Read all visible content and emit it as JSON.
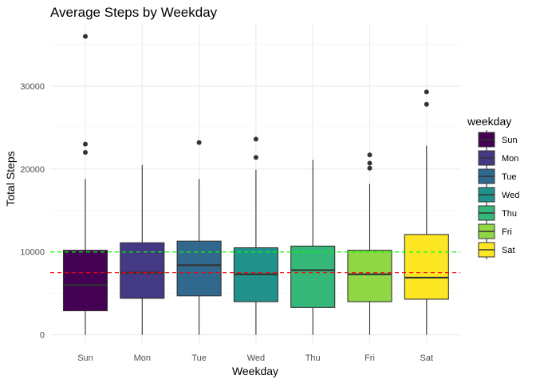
{
  "chart_data": {
    "type": "boxplot",
    "title": "Average Steps by Weekday",
    "xlabel": "Weekday",
    "ylabel": "Total Steps",
    "ylim": [
      -1000,
      37500
    ],
    "yticks": [
      0,
      10000,
      20000,
      30000
    ],
    "grid": true,
    "legend": {
      "title": "weekday",
      "position": "right"
    },
    "reference_lines": [
      {
        "value": 10000,
        "color": "#00ff00",
        "style": "dashed"
      },
      {
        "value": 7500,
        "color": "#ff0000",
        "style": "dashed"
      }
    ],
    "categories": [
      "Sun",
      "Mon",
      "Tue",
      "Wed",
      "Thu",
      "Fri",
      "Sat"
    ],
    "colors": [
      "#440154",
      "#443983",
      "#31688e",
      "#21918c",
      "#35b779",
      "#8fd744",
      "#fde725"
    ],
    "boxes": [
      {
        "label": "Sun",
        "min": 0,
        "q1": 2900,
        "median": 6000,
        "q3": 10200,
        "max": 18800,
        "outliers": [
          22000,
          23000,
          36000
        ]
      },
      {
        "label": "Mon",
        "min": 0,
        "q1": 4400,
        "median": 7500,
        "q3": 11100,
        "max": 20500,
        "outliers": []
      },
      {
        "label": "Tue",
        "min": 0,
        "q1": 4700,
        "median": 8400,
        "q3": 11300,
        "max": 18800,
        "outliers": [
          23200
        ]
      },
      {
        "label": "Wed",
        "min": 0,
        "q1": 4000,
        "median": 7300,
        "q3": 10500,
        "max": 19900,
        "outliers": [
          21400,
          23600
        ]
      },
      {
        "label": "Thu",
        "min": 0,
        "q1": 3300,
        "median": 7800,
        "q3": 10700,
        "max": 21100,
        "outliers": []
      },
      {
        "label": "Fri",
        "min": 0,
        "q1": 4000,
        "median": 7300,
        "q3": 10200,
        "max": 18200,
        "outliers": [
          20100,
          20700,
          21700
        ]
      },
      {
        "label": "Sat",
        "min": 0,
        "q1": 4300,
        "median": 6900,
        "q3": 12100,
        "max": 22800,
        "outliers": [
          27800,
          29300
        ]
      }
    ]
  }
}
